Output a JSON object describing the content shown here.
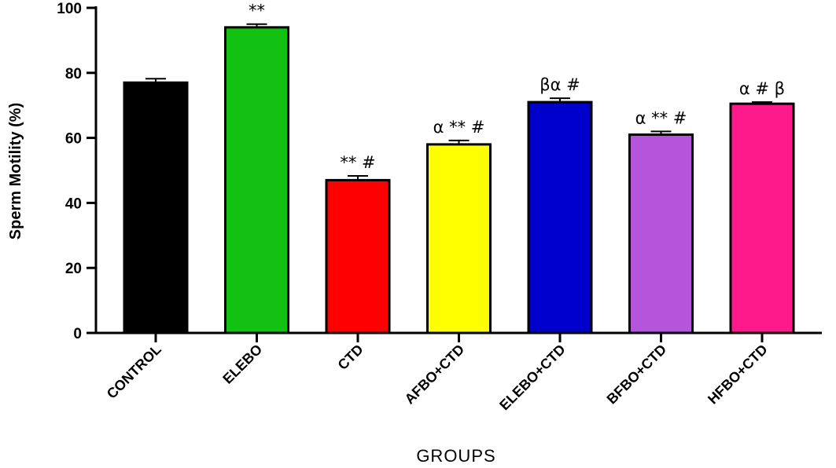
{
  "chart_data": {
    "type": "bar",
    "xlabel": "GROUPS",
    "ylabel": "Sperm Motility (%)",
    "ylim": [
      0,
      100
    ],
    "yticks": [
      0,
      20,
      40,
      60,
      80,
      100
    ],
    "grid": false,
    "categories": [
      "CONTROL",
      "ELEBO",
      "CTD",
      "AFBO+CTD",
      "ELEBO+CTD",
      "BFBO+CTD",
      "HFBO+CTD"
    ],
    "values": [
      77,
      94,
      47,
      58,
      71,
      61,
      70.5
    ],
    "errors": [
      1.2,
      1.0,
      1.3,
      1.2,
      1.2,
      1.0,
      0.5
    ],
    "annotations": [
      "",
      "**",
      "** #",
      "α ** #",
      "βα #",
      "α ** #",
      "α # β"
    ],
    "colors": [
      "#000000",
      "#13c113",
      "#ff0000",
      "#ffff00",
      "#0000cc",
      "#b455dc",
      "#ff1a8c"
    ]
  }
}
